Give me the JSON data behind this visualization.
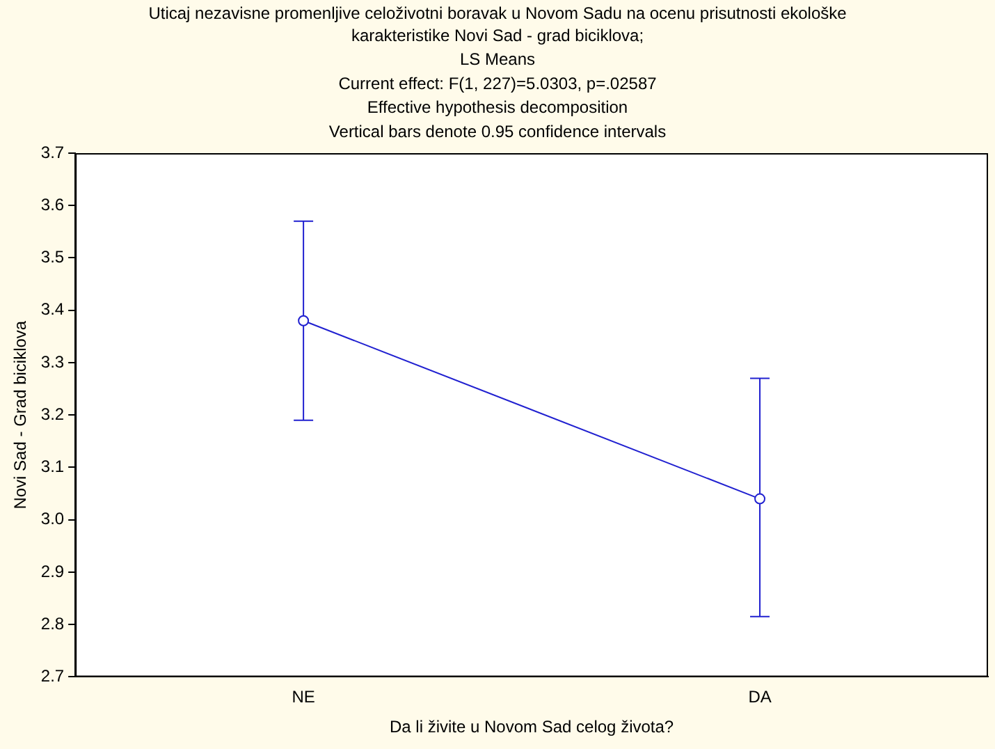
{
  "chart_data": {
    "type": "line",
    "title": "Uticaj nezavisne promenljive celoživotni boravak u Novom Sadu na ocenu prisutnosti ekološke\nkarakteristike Novi Sad - grad biciklova;",
    "subtitle": "LS Means\nCurrent effect: F(1, 227)=5.0303, p=.02587\nEffective hypothesis decomposition\nVertical bars denote 0.95 confidence intervals",
    "xlabel": "Da li živite u Novom Sad celog života?",
    "ylabel": "Novi Sad - Grad biciklova",
    "categories": [
      "NE",
      "DA"
    ],
    "series": [
      {
        "color": "#2020d0",
        "values": [
          3.38,
          3.04
        ],
        "errors": [
          [
            3.19,
            3.57
          ],
          [
            2.815,
            3.27
          ]
        ]
      }
    ],
    "ylim": [
      2.7,
      3.7
    ],
    "yticks": [
      2.7,
      2.8,
      2.9,
      {
        "value": 3,
        "label": "3.0"
      },
      3.1,
      3.2,
      3.3,
      3.4,
      3.5,
      3.6,
      3.7
    ],
    "grid": false,
    "legend": false,
    "marker": "circle",
    "line_style": "solid"
  }
}
